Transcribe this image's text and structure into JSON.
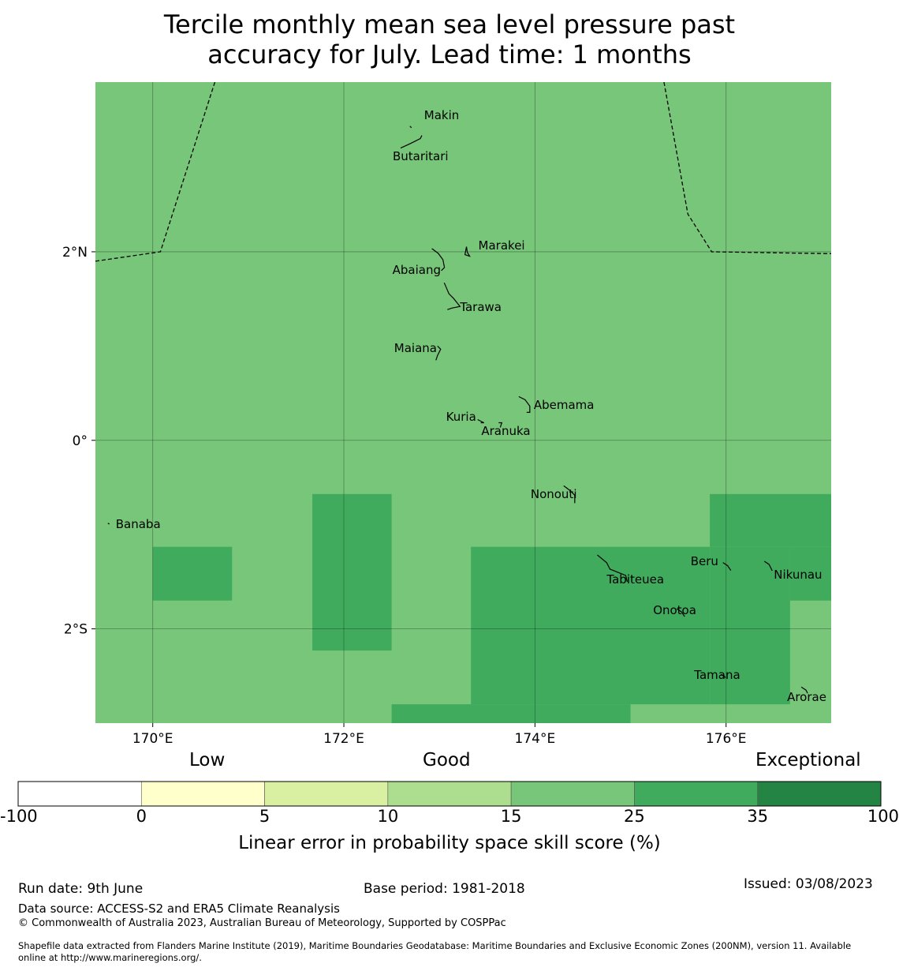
{
  "title": {
    "line1": "Tercile monthly mean sea level pressure past",
    "line2": "accuracy for July. Lead time: 1 months"
  },
  "map": {
    "lon_range": [
      169.4,
      177.1
    ],
    "lat_range": [
      -3.0,
      3.8
    ],
    "background_class": "15-25",
    "grid_lons": [
      170,
      172,
      174,
      176
    ],
    "grid_lats": [
      2,
      0,
      -2
    ],
    "lon_ticks": [
      "170°E",
      "172°E",
      "174°E",
      "176°E"
    ],
    "lat_ticks": [
      "2°N",
      "0°",
      "2°S"
    ],
    "skill_cells_25_35": [
      {
        "lon": [
          170.0,
          170.83
        ],
        "lat": [
          -1.7,
          -1.13
        ]
      },
      {
        "lon": [
          171.67,
          172.5
        ],
        "lat": [
          -2.23,
          -0.57
        ]
      },
      {
        "lon": [
          173.33,
          175.83
        ],
        "lat": [
          -2.8,
          -1.13
        ]
      },
      {
        "lon": [
          172.5,
          175.0
        ],
        "lat": [
          -3.0,
          -2.8
        ]
      },
      {
        "lon": [
          175.83,
          177.1
        ],
        "lat": [
          -1.13,
          -0.57
        ]
      },
      {
        "lon": [
          175.83,
          176.67
        ],
        "lat": [
          -2.8,
          -1.13
        ]
      },
      {
        "lon": [
          176.67,
          177.1
        ],
        "lat": [
          -1.7,
          -1.13
        ]
      }
    ],
    "islands": [
      {
        "name": "Makin",
        "lon": 172.98,
        "lat": 3.4
      },
      {
        "name": "Butaritari",
        "lon": 172.8,
        "lat": 3.05
      },
      {
        "name": "Marakei",
        "lon": 173.3,
        "lat": 2.02
      },
      {
        "name": "Abaiang",
        "lon": 173.02,
        "lat": 1.85
      },
      {
        "name": "Tarawa",
        "lon": 173.1,
        "lat": 1.42
      },
      {
        "name": "Maiana",
        "lon": 172.98,
        "lat": 0.95
      },
      {
        "name": "Abemama",
        "lon": 173.88,
        "lat": 0.38
      },
      {
        "name": "Kuria",
        "lon": 173.4,
        "lat": 0.22
      },
      {
        "name": "Aranuka",
        "lon": 173.62,
        "lat": 0.17
      },
      {
        "name": "Nonouti",
        "lon": 174.4,
        "lat": -0.65
      },
      {
        "name": "Banaba",
        "lon": 169.53,
        "lat": -0.88
      },
      {
        "name": "Tabiteuea",
        "lon": 174.9,
        "lat": -1.4
      },
      {
        "name": "Beru",
        "lon": 176.0,
        "lat": -1.33
      },
      {
        "name": "Nikunau",
        "lon": 176.45,
        "lat": -1.35
      },
      {
        "name": "Onotoa",
        "lon": 175.55,
        "lat": -1.82
      },
      {
        "name": "Tamana",
        "lon": 175.98,
        "lat": -2.5
      },
      {
        "name": "Arorae",
        "lon": 176.82,
        "lat": -2.65
      }
    ],
    "eez_boundary_left": [
      [
        169.4,
        1.9
      ],
      [
        170.08,
        2.0
      ],
      [
        170.65,
        3.8
      ]
    ],
    "eez_boundary_right": [
      [
        175.35,
        3.8
      ],
      [
        175.6,
        2.4
      ],
      [
        175.85,
        2.0
      ],
      [
        177.1,
        1.98
      ]
    ]
  },
  "legend": {
    "category_low": "Low",
    "category_good": "Good",
    "category_exceptional": "Exceptional",
    "bins": [
      {
        "from": "-100",
        "to": "0",
        "color": "#ffffff"
      },
      {
        "from": "0",
        "to": "5",
        "color": "#ffffcc"
      },
      {
        "from": "5",
        "to": "10",
        "color": "#d9f0a3"
      },
      {
        "from": "10",
        "to": "15",
        "color": "#addd8e"
      },
      {
        "from": "15",
        "to": "25",
        "color": "#78c679"
      },
      {
        "from": "25",
        "to": "35",
        "color": "#41ab5d"
      },
      {
        "from": "35",
        "to": "100",
        "color": "#238443"
      }
    ],
    "tick_labels": [
      "-100",
      "0",
      "5",
      "10",
      "15",
      "25",
      "35",
      "100"
    ],
    "axis_label": "Linear error in probability space skill score (%)"
  },
  "footer": {
    "run_date": "Run date: 9th June",
    "base_period": "Base period: 1981-2018",
    "issued": "Issued: 03/08/2023",
    "data_source": "Data source: ACCESS-S2 and ERA5 Climate Reanalysis",
    "copyright": "© Commonwealth of Australia 2023, Australian Bureau of Meteorology, Supported by COSPPac",
    "shapefile_line1": "Shapefile data extracted from Flanders Marine Institute (2019), Maritime Boundaries Geodatabase: Maritime Boundaries and Exclusive Economic Zones (200NM), version 11. Available",
    "shapefile_line2": "online at http://www.marineregions.org/."
  }
}
